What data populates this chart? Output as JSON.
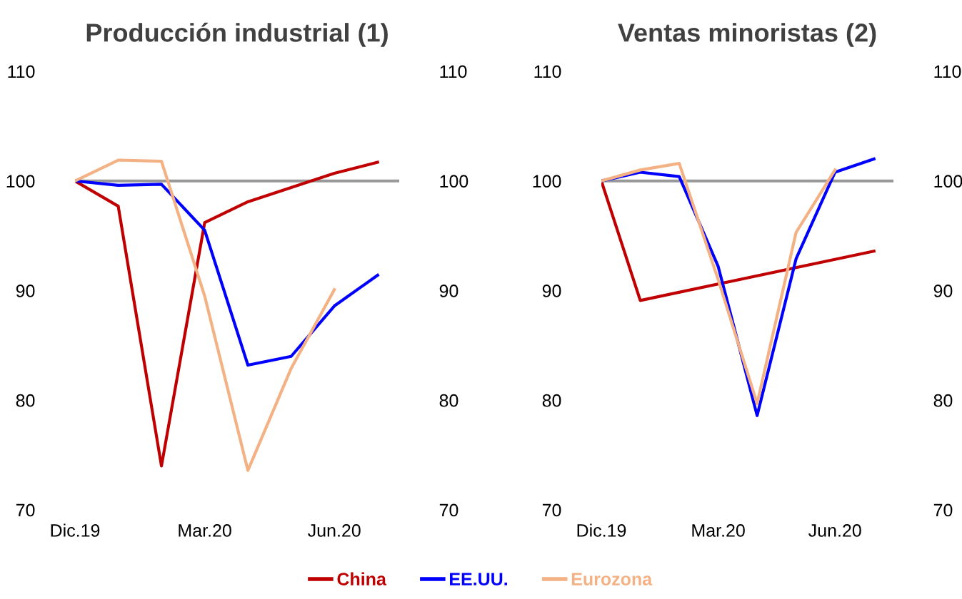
{
  "chart_data": [
    {
      "type": "line",
      "title": "Producción industrial (1)",
      "categories": [
        "Dic.19",
        null,
        null,
        "Mar.20",
        null,
        null,
        "Jun.20",
        null
      ],
      "series": [
        {
          "name": "China",
          "color": "#c00000",
          "values": [
            100,
            97.7,
            74.0,
            96.2,
            98.1,
            99.4,
            100.7,
            101.7
          ]
        },
        {
          "name": "EE.UU.",
          "color": "#0000ff",
          "values": [
            100,
            99.6,
            99.7,
            95.5,
            83.2,
            84.0,
            88.6,
            91.4
          ]
        },
        {
          "name": "Eurozona",
          "color": "#f4b183",
          "values": [
            100,
            101.9,
            101.8,
            89.5,
            73.6,
            82.9,
            90.1,
            null
          ]
        }
      ],
      "ylim": [
        70,
        110
      ],
      "yticks": [
        70,
        80,
        90,
        100,
        110
      ],
      "y2lim": [
        70,
        110
      ],
      "y2ticks": [
        70,
        80,
        90,
        100,
        110
      ],
      "ref_lines": [
        {
          "axis": "y",
          "value": 100,
          "color": "#999999"
        }
      ],
      "legend": "bottom",
      "grid": false
    },
    {
      "type": "line",
      "title": "Ventas minoristas (2)",
      "categories": [
        "Dic.19",
        null,
        null,
        "Mar.20",
        null,
        null,
        "Jun.20",
        null
      ],
      "series": [
        {
          "color": "#c00000",
          "values": [
            100,
            89.1,
            null,
            null,
            null,
            null,
            null,
            93.6
          ]
        },
        {
          "color": "#0000ff",
          "values": [
            100,
            100.8,
            100.4,
            92.2,
            78.6,
            92.9,
            100.8,
            102.0
          ]
        },
        {
          "color": "#f4b183",
          "values": [
            100,
            101.0,
            101.6,
            91.0,
            79.7,
            95.3,
            101.0,
            null
          ]
        }
      ],
      "ylim": [
        70,
        110
      ],
      "yticks": [
        70,
        80,
        90,
        100,
        110
      ],
      "y2lim": [
        70,
        110
      ],
      "y2ticks": [
        70,
        80,
        90,
        100,
        110
      ],
      "ref_lines": [
        {
          "axis": "y",
          "value": 100,
          "color": "#999999"
        }
      ],
      "grid": false
    }
  ]
}
